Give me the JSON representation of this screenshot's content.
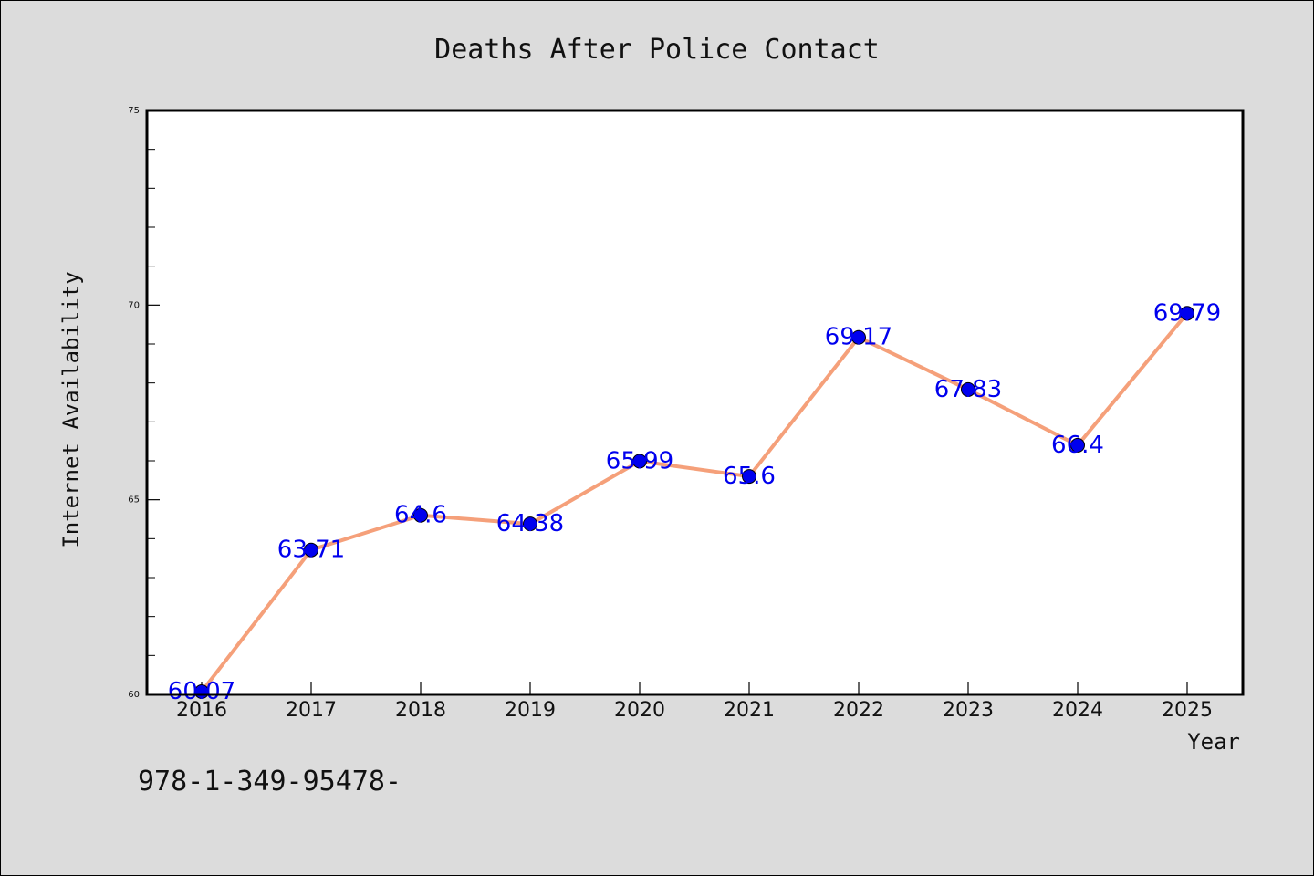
{
  "chart_data": {
    "type": "line",
    "title": "Deaths After Police Contact",
    "xlabel": "Year",
    "ylabel": "Internet Availability",
    "categories": [
      "2016",
      "2017",
      "2018",
      "2019",
      "2020",
      "2021",
      "2022",
      "2023",
      "2024",
      "2025"
    ],
    "series": [
      {
        "values": [
          60.07,
          63.71,
          64.6,
          64.38,
          65.99,
          65.6,
          69.17,
          67.83,
          66.4,
          69.79
        ],
        "data_labels": [
          "60.07",
          "63.71",
          "64.6",
          "64.38",
          "65.99",
          "65.6",
          "69.17",
          "67.83",
          "66.4",
          "69.79"
        ]
      }
    ],
    "ylim": [
      60,
      75
    ],
    "y_ticks": [
      "60",
      "65",
      "70",
      "75"
    ],
    "grid": false,
    "legend": "none",
    "colors": {
      "line": "#f5a07a",
      "marker": "#0000ee",
      "data_label": "#0000ee",
      "background": "#dcdcdc",
      "plot_background": "#ffffff"
    }
  },
  "footnote": "978-1-349-95478-"
}
